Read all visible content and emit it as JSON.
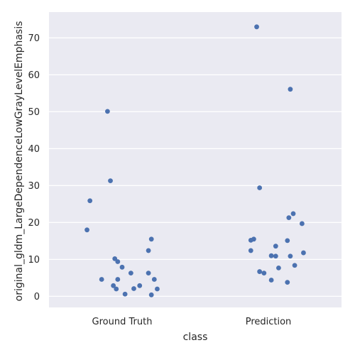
{
  "chart_data": {
    "type": "scatter",
    "title": "",
    "xlabel": "class",
    "ylabel": "original_gldm_LargeDependenceLowGrayLevelEmphasis",
    "categories": [
      "Ground Truth",
      "Prediction"
    ],
    "ylim": [
      -3,
      77
    ],
    "yticks": [
      0,
      10,
      20,
      30,
      40,
      50,
      60,
      70
    ],
    "grid": true,
    "point_color": "#4c72b0",
    "background_color": "#eaeaf2",
    "series": [
      {
        "category": "Ground Truth",
        "points": [
          {
            "jitter": -0.1,
            "y": 50.1
          },
          {
            "jitter": -0.08,
            "y": 31.3
          },
          {
            "jitter": -0.22,
            "y": 25.9
          },
          {
            "jitter": -0.24,
            "y": 18.0
          },
          {
            "jitter": 0.2,
            "y": 15.5
          },
          {
            "jitter": 0.18,
            "y": 12.4
          },
          {
            "jitter": -0.05,
            "y": 10.2
          },
          {
            "jitter": -0.03,
            "y": 9.4
          },
          {
            "jitter": 0.0,
            "y": 7.9
          },
          {
            "jitter": 0.06,
            "y": 6.3
          },
          {
            "jitter": 0.18,
            "y": 6.3
          },
          {
            "jitter": -0.14,
            "y": 4.6
          },
          {
            "jitter": -0.03,
            "y": 4.6
          },
          {
            "jitter": 0.22,
            "y": 4.6
          },
          {
            "jitter": -0.06,
            "y": 2.9
          },
          {
            "jitter": 0.12,
            "y": 2.9
          },
          {
            "jitter": -0.04,
            "y": 2.0
          },
          {
            "jitter": 0.08,
            "y": 2.1
          },
          {
            "jitter": 0.24,
            "y": 2.0
          },
          {
            "jitter": 0.02,
            "y": 0.6
          },
          {
            "jitter": 0.2,
            "y": 0.4
          }
        ]
      },
      {
        "category": "Prediction",
        "points": [
          {
            "jitter": -0.08,
            "y": 73.0
          },
          {
            "jitter": 0.15,
            "y": 56.1
          },
          {
            "jitter": -0.06,
            "y": 29.4
          },
          {
            "jitter": 0.17,
            "y": 22.4
          },
          {
            "jitter": 0.14,
            "y": 21.3
          },
          {
            "jitter": 0.23,
            "y": 19.7
          },
          {
            "jitter": -0.1,
            "y": 15.5
          },
          {
            "jitter": -0.12,
            "y": 15.2
          },
          {
            "jitter": 0.13,
            "y": 15.1
          },
          {
            "jitter": 0.05,
            "y": 13.6
          },
          {
            "jitter": -0.12,
            "y": 12.4
          },
          {
            "jitter": 0.24,
            "y": 11.8
          },
          {
            "jitter": 0.02,
            "y": 11.0
          },
          {
            "jitter": 0.05,
            "y": 10.9
          },
          {
            "jitter": 0.15,
            "y": 10.9
          },
          {
            "jitter": 0.18,
            "y": 8.4
          },
          {
            "jitter": 0.07,
            "y": 7.7
          },
          {
            "jitter": -0.06,
            "y": 6.7
          },
          {
            "jitter": -0.03,
            "y": 6.3
          },
          {
            "jitter": 0.02,
            "y": 4.4
          },
          {
            "jitter": 0.13,
            "y": 3.8
          }
        ]
      }
    ]
  }
}
